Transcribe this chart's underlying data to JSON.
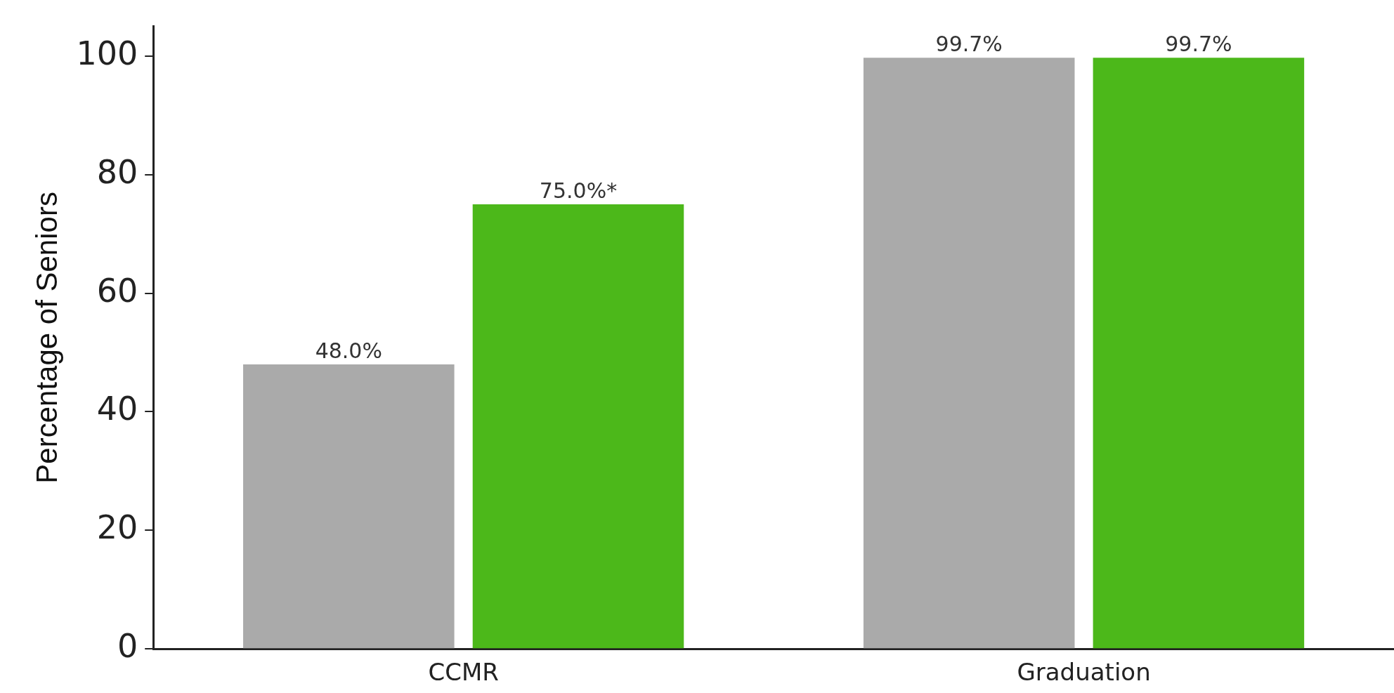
{
  "chart_data": {
    "type": "bar",
    "ylabel": "Percentage of Seniors",
    "categories": [
      "CCMR",
      "Graduation"
    ],
    "series": [
      {
        "color": "#aaaaaa",
        "values": [
          48.0,
          99.7
        ],
        "value_labels": [
          "48.0%",
          "99.7%"
        ]
      },
      {
        "color": "#4cb81a",
        "values": [
          75.0,
          99.7
        ],
        "value_labels": [
          "75.0%*",
          "99.7%"
        ]
      }
    ],
    "ylim": [
      0,
      105
    ],
    "yticks": [
      0,
      20,
      40,
      60,
      80,
      100
    ],
    "grid": false,
    "legend": false
  }
}
